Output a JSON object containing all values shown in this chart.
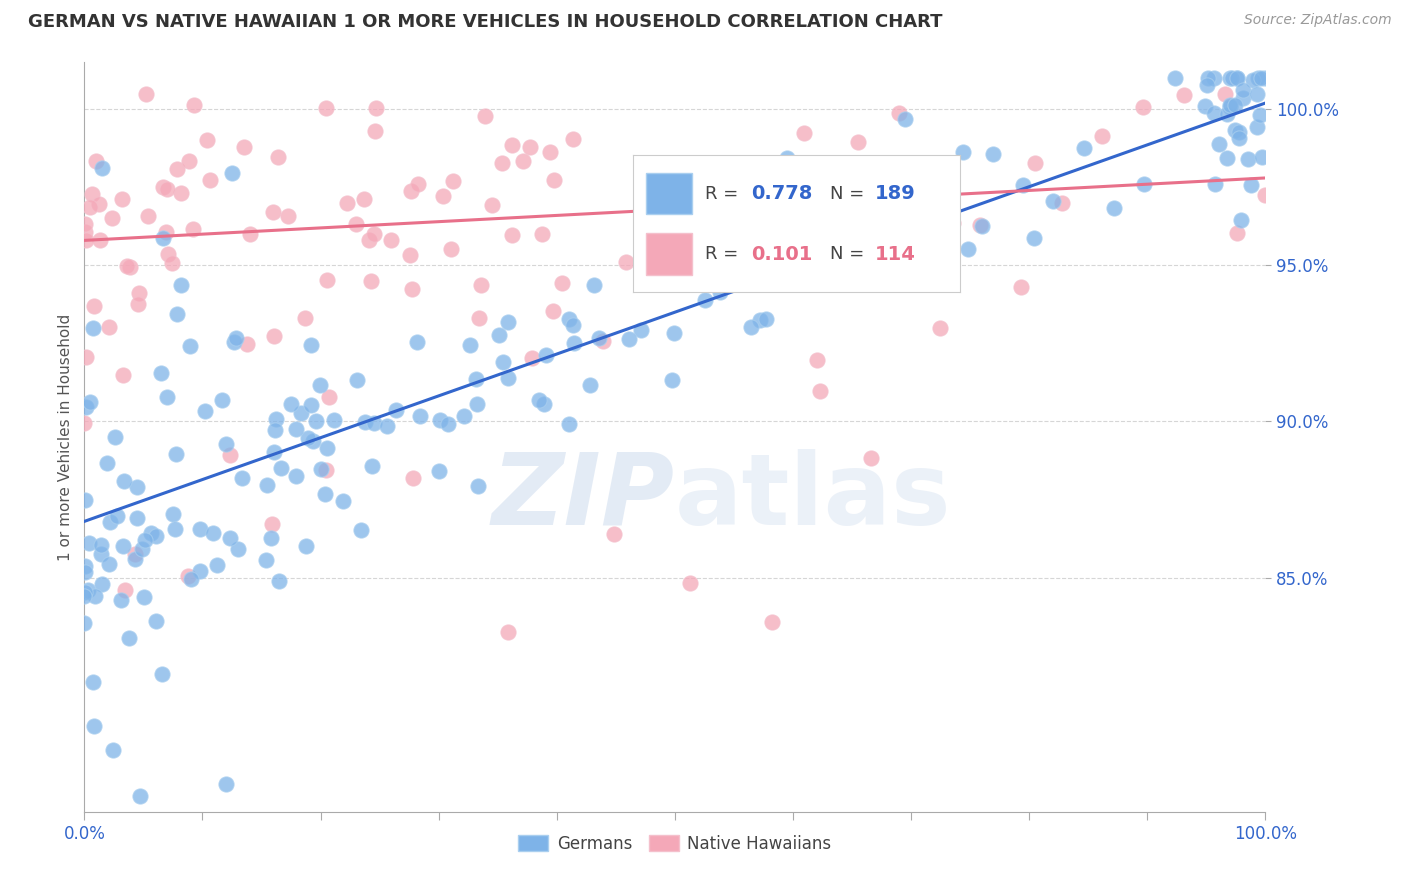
{
  "title": "GERMAN VS NATIVE HAWAIIAN 1 OR MORE VEHICLES IN HOUSEHOLD CORRELATION CHART",
  "source": "Source: ZipAtlas.com",
  "ylabel": "1 or more Vehicles in Household",
  "watermark": "ZIPatlas",
  "blue_R": 0.778,
  "blue_N": 189,
  "pink_R": 0.101,
  "pink_N": 114,
  "blue_color": "#7EB3E8",
  "blue_edge_color": "#AACFEF",
  "pink_color": "#F4A8B8",
  "pink_edge_color": "#F4C0CC",
  "blue_line_color": "#3366CC",
  "pink_line_color": "#E8708A",
  "title_color": "#333333",
  "axis_label_color": "#555555",
  "tick_label_color": "#3366CC",
  "source_color": "#999999",
  "legend_R_blue": "#3366CC",
  "legend_R_pink": "#E8708A",
  "background_color": "#FFFFFF",
  "grid_color": "#CCCCCC",
  "xmin": 0.0,
  "xmax": 1.0,
  "ymin": 0.775,
  "ymax": 1.015,
  "blue_line_y_start": 0.868,
  "blue_line_y_end": 1.002,
  "pink_line_y_start": 0.958,
  "pink_line_y_end": 0.978,
  "yticks": [
    0.85,
    0.9,
    0.95,
    1.0
  ],
  "ytick_labels": [
    "85.0%",
    "90.0%",
    "95.0%",
    "100.0%"
  ],
  "xtick_left_label": "0.0%",
  "xtick_right_label": "100.0%"
}
